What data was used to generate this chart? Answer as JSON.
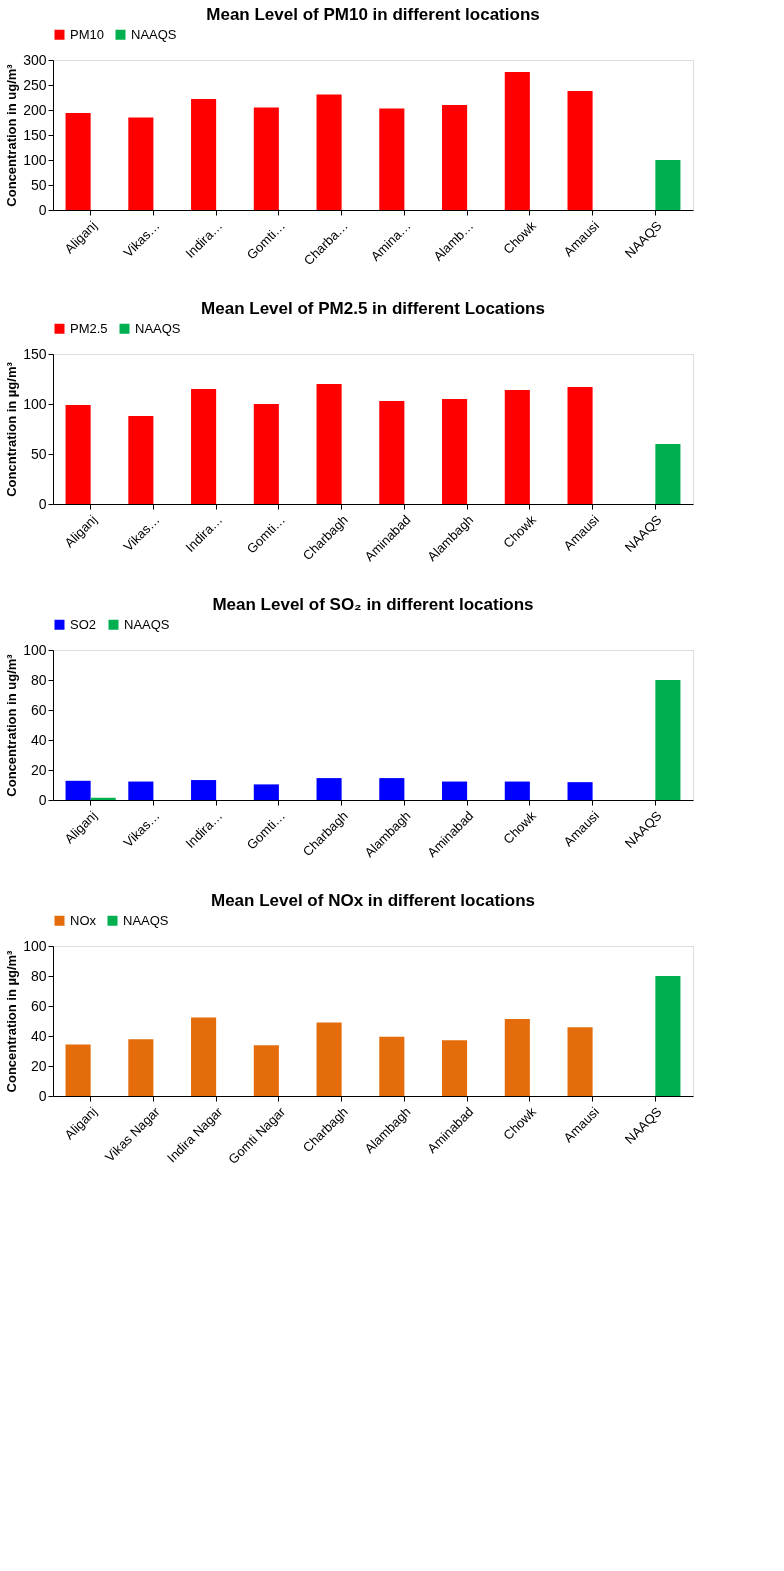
{
  "chart_data": [
    {
      "type": "bar",
      "title": "Mean Level of PM10  in different locations",
      "ylabel": "Concentration in ug/m³",
      "legend": "top",
      "ylim": [
        0,
        300
      ],
      "yticks": [
        0,
        50,
        100,
        150,
        200,
        250,
        300
      ],
      "categories": [
        "Aliganj",
        "Vikas…",
        "Indira…",
        "Gomti…",
        "Charba…",
        "Amina…",
        "Alamb…",
        "Chowk",
        "Amausi",
        "NAAQS"
      ],
      "series": [
        {
          "name": "PM10",
          "color": "#ff0000",
          "values": [
            194,
            185,
            222,
            205,
            231,
            203,
            210,
            276,
            238,
            null
          ]
        },
        {
          "name": "NAAQS",
          "color": "#00b050",
          "values": [
            null,
            null,
            null,
            null,
            null,
            null,
            null,
            null,
            null,
            100
          ]
        }
      ]
    },
    {
      "type": "bar",
      "title": "Mean Level of PM2.5 in different Locations",
      "ylabel": "Concntration in µg/m³",
      "legend": "top",
      "ylim": [
        0,
        150
      ],
      "yticks": [
        0,
        50,
        100,
        150
      ],
      "categories": [
        "Aliganj",
        "Vikas…",
        "Indira…",
        "Gomti…",
        "Charbagh",
        "Aminabad",
        "Alambagh",
        "Chowk",
        "Amausi",
        "NAAQS"
      ],
      "series": [
        {
          "name": "PM2.5",
          "color": "#ff0000",
          "values": [
            99,
            88,
            115,
            100,
            120,
            103,
            105,
            114,
            117,
            null
          ]
        },
        {
          "name": "NAAQS",
          "color": "#00b050",
          "values": [
            null,
            null,
            null,
            null,
            null,
            null,
            null,
            null,
            null,
            60
          ]
        }
      ]
    },
    {
      "type": "bar",
      "title": "Mean Level of  SO₂  in different locations",
      "ylabel": "Concentration in ug/m³",
      "legend": "top",
      "ylim": [
        0,
        100
      ],
      "yticks": [
        0,
        20,
        40,
        60,
        80,
        100
      ],
      "categories": [
        "Aliganj",
        "Vikas…",
        "Indira…",
        "Gomti…",
        "Charbagh",
        "Alambagh",
        "Aminabad",
        "Chowk",
        "Amausi",
        "NAAQS"
      ],
      "series": [
        {
          "name": "SO2",
          "color": "#0000ff",
          "values": [
            12.8,
            12.3,
            13.3,
            10.4,
            14.6,
            14.6,
            12.3,
            12.3,
            11.9,
            null
          ]
        },
        {
          "name": "NAAQS",
          "color": "#00b050",
          "values": [
            1.5,
            null,
            null,
            null,
            null,
            null,
            null,
            null,
            null,
            80
          ]
        }
      ]
    },
    {
      "type": "bar",
      "title": "Mean Level of NOx in different locations",
      "ylabel": "Concentration in µg/m³",
      "legend": "top",
      "ylim": [
        0,
        100
      ],
      "yticks": [
        0,
        20,
        40,
        60,
        80,
        100
      ],
      "categories": [
        "Aliganj",
        "Vikas Nagar",
        "Indira Nagar",
        "Gomti Nagar",
        "Charbagh",
        "Alambagh",
        "Aminabad",
        "Chowk",
        "Amausi",
        "NAAQS"
      ],
      "series": [
        {
          "name": "NOx",
          "color": "#e46c0a",
          "values": [
            34.4,
            37.8,
            52.4,
            33.8,
            49,
            39.5,
            37.2,
            51.3,
            45.8,
            null
          ]
        },
        {
          "name": "NAAQS",
          "color": "#00b050",
          "values": [
            null,
            null,
            null,
            null,
            null,
            null,
            null,
            null,
            null,
            80
          ]
        }
      ]
    }
  ]
}
